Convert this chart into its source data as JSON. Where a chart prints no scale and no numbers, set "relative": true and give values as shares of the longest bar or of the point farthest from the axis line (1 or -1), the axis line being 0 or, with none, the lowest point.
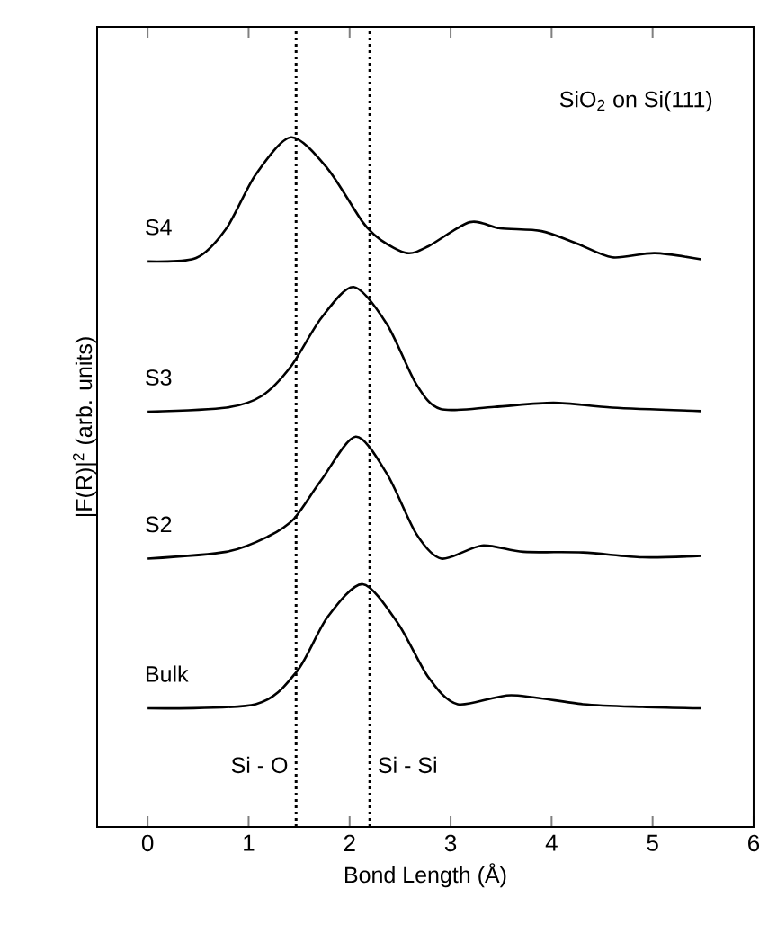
{
  "chart_data": {
    "type": "line",
    "relative": true,
    "xlabel": "Bond Length (Å)",
    "ylabel": "|F(R)|$^{2}$ (arb. units)",
    "annotations": [
      "SiO$_{2}$ on Si(111)"
    ],
    "xlim": [
      -0.5,
      6
    ],
    "xticks": [
      0,
      1,
      2,
      3,
      4,
      5,
      6
    ],
    "marker": "none",
    "line_style": "solid",
    "legend": false,
    "grid": false,
    "ref_lines": [
      {
        "axis": "x",
        "value": 1.47,
        "label": "Si - O",
        "line_style": "dotted",
        "color": "#000000"
      },
      {
        "axis": "x",
        "value": 2.2,
        "label": "Si - Si",
        "line_style": "dotted",
        "color": "#000000"
      }
    ],
    "series": [
      {
        "name": "S4",
        "color": "#000000",
        "x": [
          0,
          0.48,
          0.78,
          1.07,
          1.42,
          1.78,
          2.13,
          2.31,
          2.57,
          2.78,
          3.19,
          3.49,
          3.9,
          4.25,
          4.6,
          5.02,
          5.48
        ],
        "values": [
          0.82,
          0.825,
          0.868,
          0.946,
          1.0,
          0.955,
          0.877,
          0.851,
          0.832,
          0.842,
          0.877,
          0.868,
          0.864,
          0.846,
          0.826,
          0.832,
          0.823
        ]
      },
      {
        "name": "S3",
        "color": "#000000",
        "x": [
          0,
          0.78,
          1.13,
          1.42,
          1.72,
          2.04,
          2.37,
          2.66,
          2.9,
          3.43,
          4.02,
          4.6,
          5.48
        ],
        "values": [
          0.602,
          0.608,
          0.625,
          0.668,
          0.738,
          0.783,
          0.729,
          0.642,
          0.606,
          0.609,
          0.615,
          0.608,
          0.603
        ]
      },
      {
        "name": "S2",
        "color": "#000000",
        "x": [
          0,
          0.78,
          1.19,
          1.45,
          1.72,
          2.06,
          2.37,
          2.66,
          2.91,
          3.31,
          3.72,
          4.31,
          4.9,
          5.48
        ],
        "values": [
          0.389,
          0.399,
          0.421,
          0.447,
          0.503,
          0.566,
          0.512,
          0.425,
          0.389,
          0.408,
          0.399,
          0.398,
          0.391,
          0.393
        ]
      },
      {
        "name": "Bulk",
        "color": "#000000",
        "x": [
          0,
          1.07,
          1.48,
          1.78,
          2.13,
          2.48,
          2.78,
          3.07,
          3.6,
          4.31,
          4.9,
          5.48
        ],
        "values": [
          0.172,
          0.178,
          0.226,
          0.304,
          0.352,
          0.295,
          0.217,
          0.178,
          0.191,
          0.178,
          0.174,
          0.172
        ]
      }
    ]
  }
}
